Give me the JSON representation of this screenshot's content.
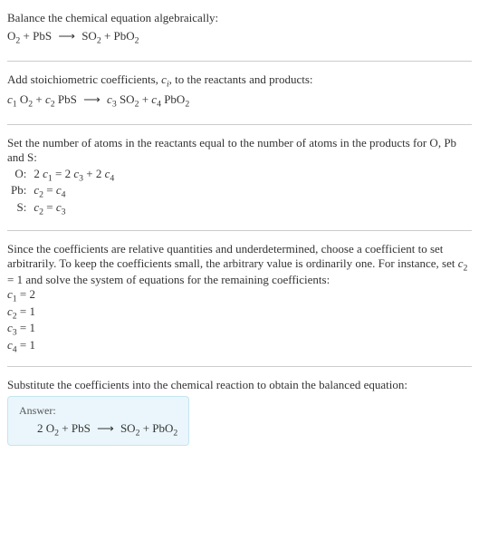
{
  "intro": {
    "line1": "Balance the chemical equation algebraically:",
    "eq_html": "O<sub>2</sub> + PbS <span class=\"arrow\">⟶</span> SO<sub>2</sub> + PbO<sub>2</sub>"
  },
  "stoich": {
    "line1_html": "Add stoichiometric coefficients, <span class=\"italic\">c<sub>i</sub></span>, to the reactants and products:",
    "eq_html": "<span class=\"italic\">c</span><sub>1</sub> O<sub>2</sub> + <span class=\"italic\">c</span><sub>2</sub> PbS <span class=\"arrow\">⟶</span> <span class=\"italic\">c</span><sub>3</sub> SO<sub>2</sub> + <span class=\"italic\">c</span><sub>4</sub> PbO<sub>2</sub>"
  },
  "atoms": {
    "line1": "Set the number of atoms in the reactants equal to the number of atoms in the products for O, Pb and S:",
    "rows": [
      {
        "label": "O:",
        "eq_html": "2 <span class=\"italic\">c</span><sub>1</sub> = 2 <span class=\"italic\">c</span><sub>3</sub> + 2 <span class=\"italic\">c</span><sub>4</sub>"
      },
      {
        "label": "Pb:",
        "eq_html": "<span class=\"italic\">c</span><sub>2</sub> = <span class=\"italic\">c</span><sub>4</sub>"
      },
      {
        "label": "S:",
        "eq_html": "<span class=\"italic\">c</span><sub>2</sub> = <span class=\"italic\">c</span><sub>3</sub>"
      }
    ]
  },
  "solve": {
    "para_html": "Since the coefficients are relative quantities and underdetermined, choose a coefficient to set arbitrarily. To keep the coefficients small, the arbitrary value is ordinarily one. For instance, set <span class=\"italic\">c</span><sub>2</sub> = 1 and solve the system of equations for the remaining coefficients:",
    "results": [
      "<span class=\"italic\">c</span><sub>1</sub> = 2",
      "<span class=\"italic\">c</span><sub>2</sub> = 1",
      "<span class=\"italic\">c</span><sub>3</sub> = 1",
      "<span class=\"italic\">c</span><sub>4</sub> = 1"
    ]
  },
  "final": {
    "line1": "Substitute the coefficients into the chemical reaction to obtain the balanced equation:",
    "answer_label": "Answer:",
    "answer_html": "2 O<sub>2</sub> + PbS <span class=\"arrow\">⟶</span> SO<sub>2</sub> + PbO<sub>2</sub>"
  },
  "colors": {
    "text": "#333333",
    "rule": "#cccccc",
    "answer_bg": "#eaf6fb",
    "answer_border": "#c5e5f0"
  }
}
